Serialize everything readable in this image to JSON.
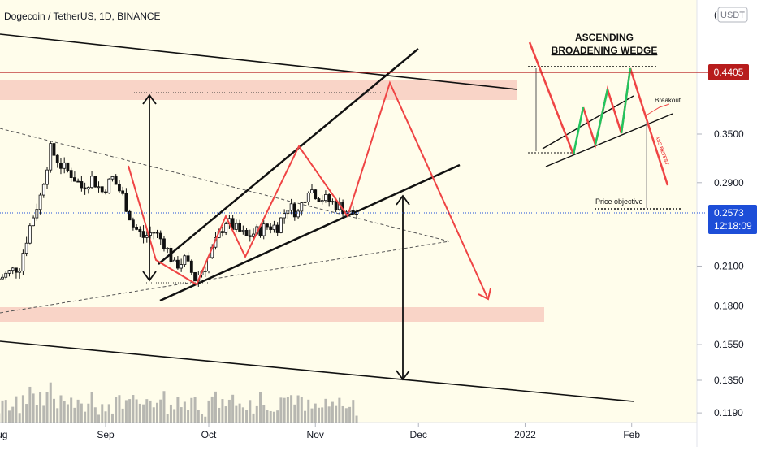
{
  "header": {
    "title": "Dogecoin / TetherUS, 1D, BINANCE",
    "currency": "USDT",
    "currency_symbol_stub": "("
  },
  "price_tags": {
    "resistance": "0.4405",
    "last_price": "0.2573",
    "countdown": "12:18:09"
  },
  "colors": {
    "background": "#fffdeb",
    "zone": "#f7c6bb",
    "candle_up": "#111111",
    "candle_down": "#111111",
    "projection": "#ef4444",
    "wedge_up": "#22c55e",
    "resistance_line": "#b71c1c",
    "last_price_tag": "#1d4ed8",
    "volume": "#999999"
  },
  "annotations": {
    "inset_title_line1": "ASCENDING",
    "inset_title_line2": "BROADENING WEDGE",
    "breakout": "Breakout",
    "price_objective": "Price objective",
    "retest": "ASS RETEST"
  },
  "chart_data": {
    "type": "line",
    "title": "Dogecoin / TetherUS, 1D, BINANCE",
    "scale": "log",
    "y_ticks": [
      "0.3500",
      "0.2900",
      "0.2100",
      "0.1800",
      "0.1550",
      "0.1350",
      "0.1190"
    ],
    "x_ticks": [
      "Aug",
      "Sep",
      "Oct",
      "Nov",
      "Dec",
      "2022",
      "Feb"
    ],
    "resistance_level": 0.4405,
    "last_price": 0.2573,
    "series": [
      {
        "x": [
          "2021-08-01",
          "2021-08-04",
          "2021-08-07",
          "2021-08-10",
          "2021-08-13",
          "2021-08-16",
          "2021-08-19",
          "2021-08-22",
          "2021-08-25",
          "2021-08-28",
          "2021-08-31",
          "2021-09-03",
          "2021-09-06",
          "2021-09-09",
          "2021-09-12",
          "2021-09-15",
          "2021-09-18",
          "2021-09-21",
          "2021-09-24",
          "2021-09-27",
          "2021-09-30",
          "2021-10-03",
          "2021-10-06",
          "2021-10-09",
          "2021-10-12",
          "2021-10-15",
          "2021-10-18",
          "2021-10-21",
          "2021-10-24",
          "2021-10-27",
          "2021-10-30",
          "2021-11-02",
          "2021-11-05",
          "2021-11-08",
          "2021-11-11",
          "2021-11-14"
        ],
        "y": [
          0.2,
          0.205,
          0.21,
          0.245,
          0.275,
          0.33,
          0.31,
          0.3,
          0.285,
          0.295,
          0.28,
          0.295,
          0.275,
          0.245,
          0.235,
          0.24,
          0.23,
          0.21,
          0.215,
          0.2,
          0.21,
          0.23,
          0.25,
          0.242,
          0.235,
          0.24,
          0.245,
          0.245,
          0.265,
          0.258,
          0.285,
          0.275,
          0.27,
          0.265,
          0.258,
          0.257
        ]
      }
    ]
  }
}
